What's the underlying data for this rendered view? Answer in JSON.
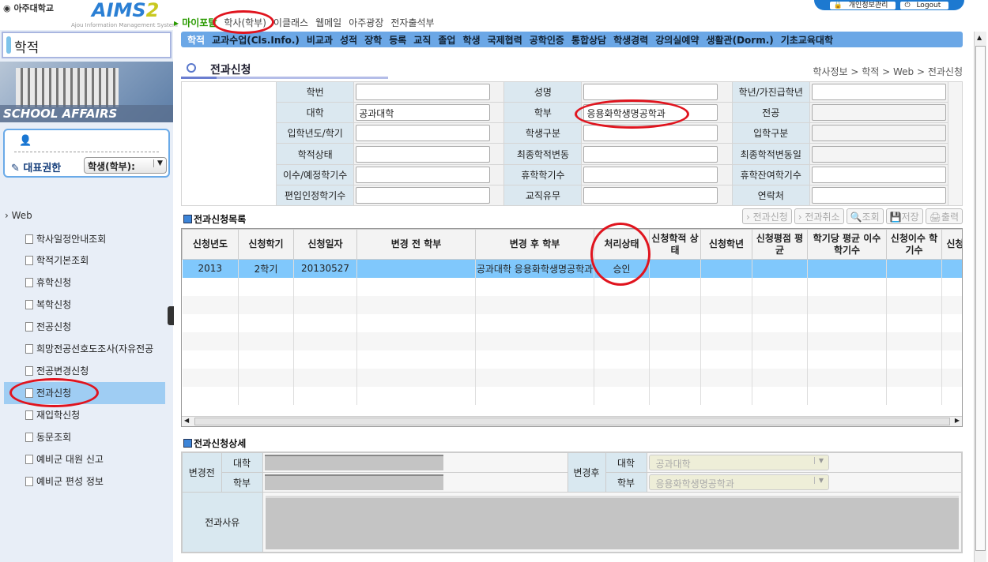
{
  "header": {
    "university": "아주대학교",
    "app_name": "AIMS",
    "app_version": "2",
    "app_subtitle": "Ajou Information Management System",
    "top_nav": [
      "마이포탈",
      "학사(학부)",
      "이클래스",
      "웹메일",
      "아주광장",
      "전자출석부"
    ],
    "personal_info": "개인정보관리",
    "logout": "Logout"
  },
  "sidebar": {
    "title": "학적",
    "banner": "SCHOOL AFFAIRS",
    "role_label": "대표권한",
    "role_value": "학생(학부):",
    "tree_root": "Web",
    "items": [
      "학사일정안내조회",
      "학적기본조회",
      "휴학신청",
      "복학신청",
      "전공신청",
      "희망전공선호도조사(자유전공",
      "전공변경신청",
      "전과신청",
      "재입학신청",
      "동문조회",
      "예비군 대원 신고",
      "예비군 편성 정보"
    ],
    "selected": "전과신청"
  },
  "menu": [
    "학적",
    "교과수업(Cls.Info.)",
    "비교과",
    "성적",
    "장학",
    "등록",
    "교직",
    "졸업",
    "학생",
    "국제협력",
    "공학인증",
    "통합상담",
    "학생경력",
    "강의실예약",
    "생활관(Dorm.)",
    "기초교육대학"
  ],
  "page": {
    "title": "전과신청",
    "breadcrumb": "학사정보 > 학적 > Web > 전과신청"
  },
  "info": {
    "rows": [
      [
        {
          "label": "학번",
          "value": ""
        },
        {
          "label": "성명",
          "value": ""
        },
        {
          "label": "학년/가진급학년",
          "value": ""
        }
      ],
      [
        {
          "label": "대학",
          "value": "공과대학"
        },
        {
          "label": "학부",
          "value": "응용화학생명공학과"
        },
        {
          "label": "전공",
          "value": ""
        }
      ],
      [
        {
          "label": "입학년도/학기",
          "value": ""
        },
        {
          "label": "학생구분",
          "value": ""
        },
        {
          "label": "입학구분",
          "value": ""
        }
      ],
      [
        {
          "label": "학적상태",
          "value": ""
        },
        {
          "label": "최종학적변동",
          "value": ""
        },
        {
          "label": "최종학적변동일",
          "value": ""
        }
      ],
      [
        {
          "label": "이수/예정학기수",
          "value": ""
        },
        {
          "label": "휴학학기수",
          "value": ""
        },
        {
          "label": "휴학잔여학기수",
          "value": ""
        }
      ],
      [
        {
          "label": "편입인정학기수",
          "value": ""
        },
        {
          "label": "교직유무",
          "value": ""
        },
        {
          "label": "연락처",
          "value": ""
        }
      ]
    ]
  },
  "list": {
    "title": "전과신청목록",
    "buttons": [
      "전과신청",
      "전과취소",
      "조회",
      "저장",
      "출력"
    ],
    "columns": [
      "신청년도",
      "신청학기",
      "신청일자",
      "변경 전 학부",
      "변경 후 학부",
      "처리상태",
      "신청학적 상태",
      "신청학년",
      "신청평점 평균",
      "학기당 평균 이수 학기수",
      "신청이수 학기수",
      "신청 학"
    ],
    "rows": [
      [
        "2013",
        "2학기",
        "20130527",
        "",
        "공과대학 응용화학생명공학과",
        "승인",
        "",
        "",
        "",
        "",
        "",
        ""
      ]
    ]
  },
  "detail": {
    "title": "전과신청상세",
    "before_label": "변경전",
    "after_label": "변경후",
    "college_label": "대학",
    "dept_label": "학부",
    "before_college": "",
    "before_dept": "",
    "after_college": "공과대학",
    "after_dept": "응용화학생명공학과",
    "reason_label": "전과사유",
    "reason": ""
  },
  "colors": {
    "menu_bar": "#6ba7e6",
    "selected_row": "#80c8fc",
    "annotation": "#e0141e"
  }
}
